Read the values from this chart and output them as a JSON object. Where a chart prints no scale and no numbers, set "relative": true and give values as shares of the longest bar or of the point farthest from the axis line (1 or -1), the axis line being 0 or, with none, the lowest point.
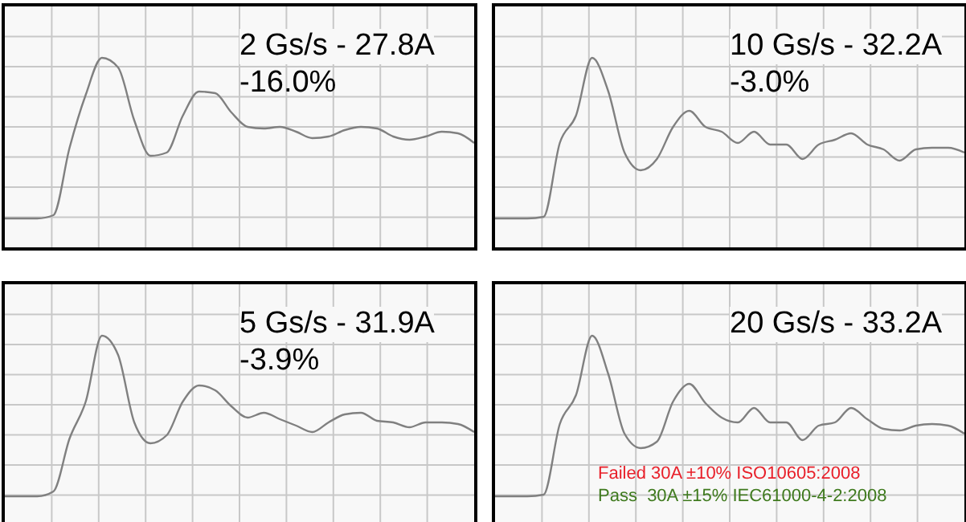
{
  "chart_data": [
    {
      "type": "line",
      "title": "2 Gs/s - 27.8A",
      "subtitle": "-16.0%",
      "relative": true,
      "grid": true,
      "categories": [
        null,
        null,
        null,
        null,
        null,
        null,
        null,
        null,
        null,
        null,
        null,
        null,
        null,
        null,
        null,
        null,
        null,
        null,
        null,
        null,
        null,
        null,
        null,
        null,
        null,
        null,
        null,
        null,
        null,
        null
      ],
      "series": [
        {
          "color": "#808080",
          "values": [
            0,
            0,
            0,
            0.02,
            0.44,
            0.77,
            1,
            0.94,
            0.61,
            0.39,
            0.41,
            0.64,
            0.79,
            0.78,
            0.66,
            0.57,
            0.56,
            0.57,
            0.54,
            0.5,
            0.51,
            0.55,
            0.57,
            0.56,
            0.51,
            0.49,
            0.51,
            0.54,
            0.53,
            0.47
          ]
        }
      ]
    },
    {
      "type": "line",
      "title": "10 Gs/s - 32.2A",
      "subtitle": "-3.0%",
      "relative": true,
      "grid": true,
      "categories": [
        null,
        null,
        null,
        null,
        null,
        null,
        null,
        null,
        null,
        null,
        null,
        null,
        null,
        null,
        null,
        null,
        null,
        null,
        null,
        null,
        null,
        null,
        null,
        null,
        null,
        null,
        null,
        null,
        null,
        null
      ],
      "series": [
        {
          "color": "#808080",
          "values": [
            0,
            0,
            0,
            0.01,
            0.47,
            0.64,
            1,
            0.79,
            0.41,
            0.3,
            0.37,
            0.57,
            0.67,
            0.57,
            0.54,
            0.47,
            0.54,
            0.46,
            0.46,
            0.37,
            0.46,
            0.49,
            0.53,
            0.46,
            0.43,
            0.36,
            0.43,
            0.44,
            0.44,
            0.41
          ]
        }
      ]
    },
    {
      "type": "line",
      "title": "5 Gs/s - 31.9A",
      "subtitle": "-3.9%",
      "relative": true,
      "grid": true,
      "categories": [
        null,
        null,
        null,
        null,
        null,
        null,
        null,
        null,
        null,
        null,
        null,
        null,
        null,
        null,
        null,
        null,
        null,
        null,
        null,
        null,
        null,
        null,
        null,
        null,
        null,
        null,
        null,
        null,
        null,
        null
      ],
      "series": [
        {
          "color": "#808080",
          "values": [
            0,
            0,
            0,
            0.03,
            0.36,
            0.59,
            1,
            0.88,
            0.46,
            0.33,
            0.38,
            0.59,
            0.69,
            0.66,
            0.56,
            0.49,
            0.52,
            0.48,
            0.44,
            0.4,
            0.46,
            0.51,
            0.52,
            0.47,
            0.46,
            0.43,
            0.46,
            0.46,
            0.45,
            0.4
          ]
        }
      ]
    },
    {
      "type": "line",
      "title": "20 Gs/s - 33.2A",
      "relative": true,
      "grid": true,
      "annotations": [
        "Failed 30A ±10% ISO10605:2008",
        "Pass  30A ±15% IEC61000-4-2:2008"
      ],
      "categories": [
        null,
        null,
        null,
        null,
        null,
        null,
        null,
        null,
        null,
        null,
        null,
        null,
        null,
        null,
        null,
        null,
        null,
        null,
        null,
        null,
        null,
        null,
        null,
        null,
        null,
        null,
        null,
        null,
        null,
        null
      ],
      "series": [
        {
          "color": "#808080",
          "values": [
            0,
            0,
            0,
            0.01,
            0.45,
            0.63,
            1,
            0.76,
            0.39,
            0.3,
            0.34,
            0.59,
            0.7,
            0.58,
            0.49,
            0.46,
            0.55,
            0.46,
            0.46,
            0.35,
            0.44,
            0.46,
            0.55,
            0.48,
            0.42,
            0.41,
            0.44,
            0.45,
            0.44,
            0.39
          ]
        }
      ]
    }
  ]
}
